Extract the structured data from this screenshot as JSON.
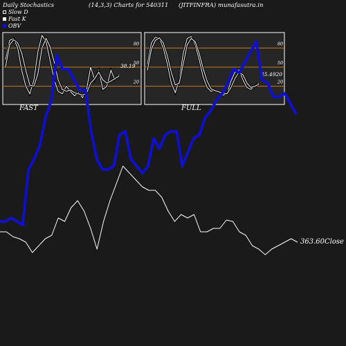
{
  "header": {
    "left": "Daily Stochastics",
    "center": "(14,3,3) Charts for 540311",
    "right": "(JITFINFRA) munafasutra.in"
  },
  "legend": [
    {
      "label": "Slow  D",
      "swatch": "slow"
    },
    {
      "label": "Fast K",
      "swatch": "k"
    },
    {
      "label": "OBV",
      "swatch": "obv"
    }
  ],
  "colors": {
    "background": "#1a1a1a",
    "panel_bg": "#262626",
    "grid": "#c87b1a",
    "obv": "#1010c8",
    "price": "#ffffff"
  },
  "chart_data": [
    {
      "type": "line",
      "panel": "FAST",
      "ylim": [
        0,
        100
      ],
      "reference_lines": [
        20,
        50,
        80
      ],
      "tick_labels": [
        "80",
        "50",
        "20"
      ],
      "last_value_label": "38.19",
      "series": [
        {
          "name": "Fast K",
          "values": [
            62,
            92,
            95,
            80,
            45,
            20,
            8,
            30,
            75,
            100,
            90,
            60,
            30,
            12,
            8,
            20,
            12,
            5,
            10,
            2,
            15,
            50,
            30,
            45,
            15,
            20,
            45,
            30,
            38
          ]
        },
        {
          "name": "Slow  D",
          "values": [
            50,
            85,
            93,
            88,
            72,
            45,
            22,
            20,
            40,
            80,
            95,
            82,
            58,
            30,
            15,
            12,
            14,
            10,
            8,
            6,
            9,
            25,
            32,
            42,
            30,
            25,
            28,
            32,
            36
          ]
        }
      ]
    },
    {
      "type": "line",
      "panel": "FULL",
      "ylim": [
        0,
        100
      ],
      "reference_lines": [
        20,
        50,
        80
      ],
      "tick_labels": [
        "80",
        "50",
        "20"
      ],
      "last_value_label": "25.4920",
      "series": [
        {
          "name": "Fast K",
          "values": [
            55,
            88,
            97,
            95,
            80,
            55,
            25,
            10,
            30,
            72,
            95,
            98,
            85,
            62,
            35,
            18,
            12,
            14,
            10,
            6,
            8,
            28,
            42,
            46,
            30,
            18,
            15,
            20,
            25
          ]
        },
        {
          "name": "Slow  D",
          "values": [
            45,
            78,
            92,
            96,
            88,
            68,
            42,
            22,
            25,
            55,
            85,
            95,
            90,
            72,
            48,
            28,
            16,
            13,
            11,
            9,
            8,
            18,
            32,
            42,
            38,
            25,
            18,
            20,
            23
          ]
        }
      ]
    },
    {
      "type": "line",
      "panel": "main",
      "close_label": "363.60Close",
      "series": [
        {
          "name": "OBV",
          "values": [
            320,
            320,
            315,
            320,
            325,
            245,
            230,
            210,
            170,
            145,
            80,
            100,
            100,
            115,
            130,
            130,
            190,
            230,
            245,
            245,
            240,
            195,
            190,
            230,
            240,
            250,
            240,
            200,
            215,
            195,
            190,
            190,
            240,
            220,
            200,
            195,
            170,
            160,
            145,
            135,
            120,
            100,
            105,
            90,
            75,
            60,
            115,
            120,
            140,
            140,
            135,
            150,
            165
          ]
        },
        {
          "name": "Price",
          "values": [
            335,
            335,
            342,
            345,
            350,
            365,
            355,
            345,
            340,
            315,
            320,
            300,
            290,
            305,
            330,
            360,
            320,
            290,
            265,
            240,
            250,
            260,
            270,
            275,
            275,
            285,
            305,
            320,
            310,
            315,
            310,
            335,
            335,
            330,
            330,
            318,
            320,
            335,
            340,
            355,
            360,
            368,
            360,
            355,
            350,
            345,
            350
          ]
        }
      ]
    }
  ]
}
